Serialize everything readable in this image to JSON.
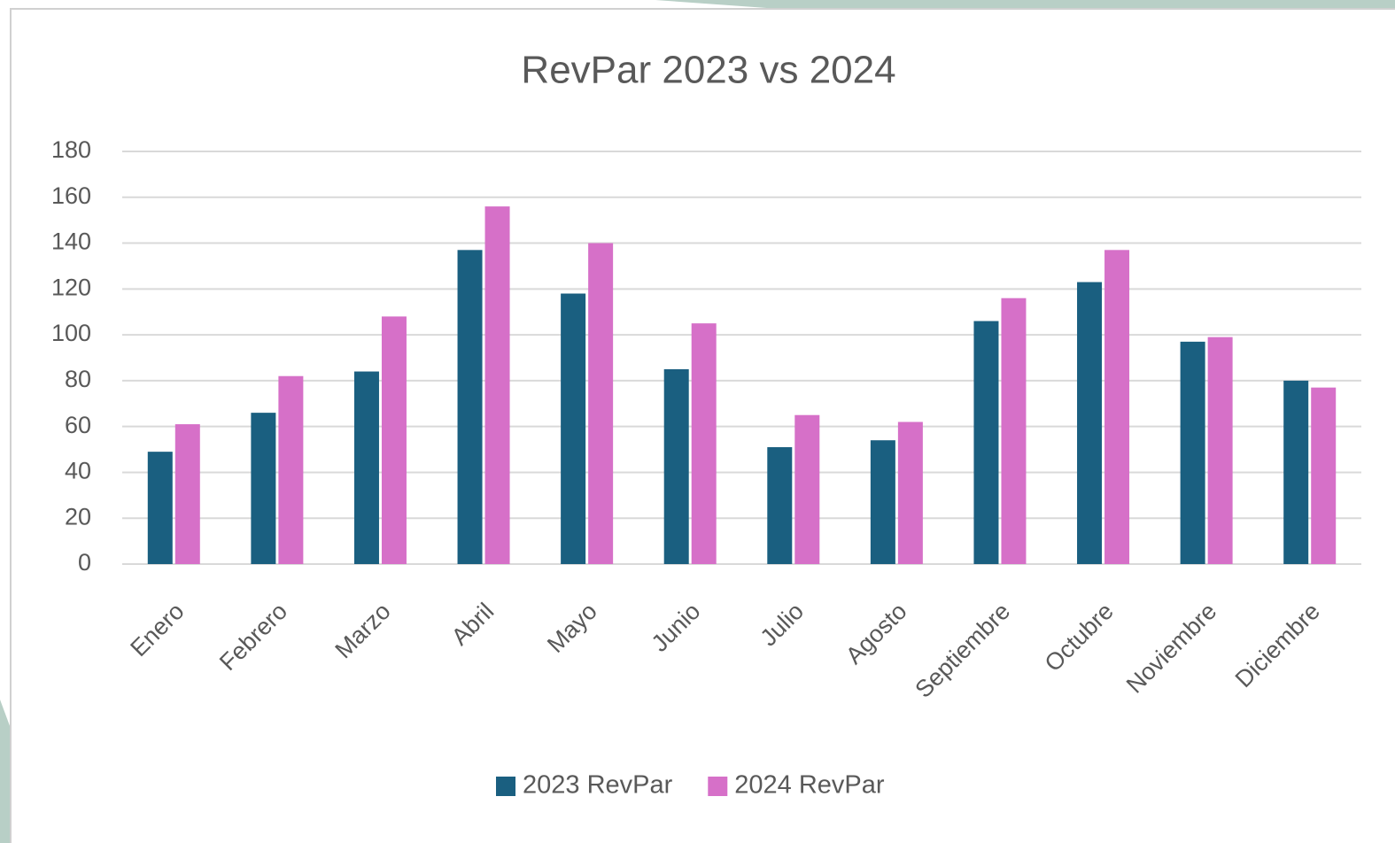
{
  "chart_data": {
    "type": "bar",
    "title": "RevPar 2023 vs 2024",
    "categories": [
      "Enero",
      "Febrero",
      "Marzo",
      "Abril",
      "Mayo",
      "Junio",
      "Julio",
      "Agosto",
      "Septiembre",
      "Octubre",
      "Noviembre",
      "Diciembre"
    ],
    "series": [
      {
        "name": "2023 RevPar",
        "color": "#1a5f80",
        "values": [
          49,
          66,
          84,
          137,
          118,
          85,
          51,
          54,
          106,
          123,
          97,
          80
        ]
      },
      {
        "name": "2024 RevPar",
        "color": "#d670c8",
        "values": [
          61,
          82,
          108,
          156,
          140,
          105,
          65,
          62,
          116,
          137,
          99,
          77
        ]
      }
    ],
    "ylim": [
      0,
      180
    ],
    "yticks": [
      0,
      20,
      40,
      60,
      80,
      100,
      120,
      140,
      160,
      180
    ],
    "grid": true,
    "legend": "bottom"
  }
}
